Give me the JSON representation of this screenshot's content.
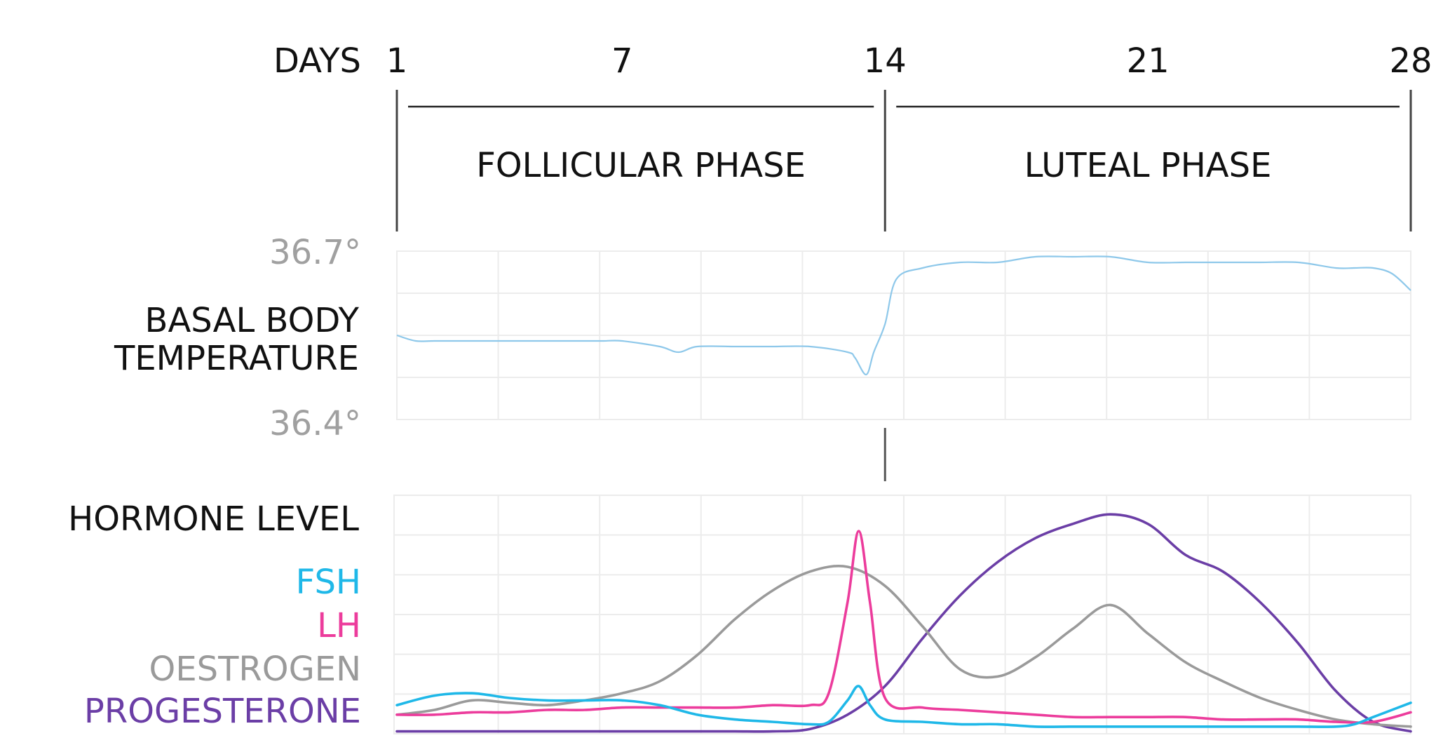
{
  "chart_data": {
    "type": "line",
    "days_label": "DAYS",
    "day_ticks": [
      "1",
      "7",
      "14",
      "21",
      "28"
    ],
    "day_tick_values": [
      1,
      7,
      14,
      21,
      28
    ],
    "x_range": [
      1,
      28
    ],
    "phases": [
      {
        "name": "FOLLICULAR PHASE",
        "start": 1,
        "end": 14
      },
      {
        "name": "LUTEAL PHASE",
        "start": 14,
        "end": 28
      }
    ],
    "temperature": {
      "label_line1": "BASAL BODY",
      "label_line2": "TEMPERATURE",
      "max_label": "36.7°",
      "min_label": "36.4°",
      "range": [
        36.4,
        36.7
      ],
      "color": "#8ec8ea",
      "points": [
        [
          1,
          36.55
        ],
        [
          1.5,
          36.54
        ],
        [
          2,
          36.54
        ],
        [
          3,
          36.54
        ],
        [
          4,
          36.54
        ],
        [
          4.5,
          36.54
        ],
        [
          5,
          36.54
        ],
        [
          6,
          36.54
        ],
        [
          6.5,
          36.54
        ],
        [
          7,
          36.54
        ],
        [
          8,
          36.53
        ],
        [
          8.5,
          36.52
        ],
        [
          9,
          36.53
        ],
        [
          10,
          36.53
        ],
        [
          10.5,
          36.53
        ],
        [
          11,
          36.53
        ],
        [
          12,
          36.53
        ],
        [
          13,
          36.52
        ],
        [
          13.2,
          36.51
        ],
        [
          13.5,
          36.48
        ],
        [
          13.7,
          36.52
        ],
        [
          14,
          36.57
        ],
        [
          14.3,
          36.65
        ],
        [
          15,
          36.67
        ],
        [
          16,
          36.68
        ],
        [
          17,
          36.68
        ],
        [
          18,
          36.69
        ],
        [
          19,
          36.69
        ],
        [
          20,
          36.69
        ],
        [
          21,
          36.68
        ],
        [
          22,
          36.68
        ],
        [
          23,
          36.68
        ],
        [
          24,
          36.68
        ],
        [
          25,
          36.68
        ],
        [
          26,
          36.67
        ],
        [
          26.5,
          36.67
        ],
        [
          27,
          36.67
        ],
        [
          27.5,
          36.66
        ],
        [
          28,
          36.63
        ]
      ]
    },
    "hormones": {
      "label": "HORMONE LEVEL",
      "range": [
        0,
        100
      ],
      "series": [
        {
          "name": "FSH",
          "color": "#1fb8e8",
          "points": [
            [
              1,
              12
            ],
            [
              2,
              16
            ],
            [
              3,
              17
            ],
            [
              4,
              15
            ],
            [
              5,
              14
            ],
            [
              6,
              14
            ],
            [
              7,
              14
            ],
            [
              8,
              12
            ],
            [
              9,
              8
            ],
            [
              10,
              6
            ],
            [
              11,
              5
            ],
            [
              12,
              4
            ],
            [
              12.5,
              5
            ],
            [
              13,
              14
            ],
            [
              13.3,
              20
            ],
            [
              13.6,
              12
            ],
            [
              14,
              6
            ],
            [
              15,
              5
            ],
            [
              16,
              4
            ],
            [
              17,
              4
            ],
            [
              18,
              3
            ],
            [
              19,
              3
            ],
            [
              20,
              3
            ],
            [
              21,
              3
            ],
            [
              22,
              3
            ],
            [
              23,
              3
            ],
            [
              24,
              3
            ],
            [
              25,
              3
            ],
            [
              26,
              3
            ],
            [
              26.5,
              4
            ],
            [
              27,
              7
            ],
            [
              27.5,
              10
            ],
            [
              28,
              13
            ]
          ]
        },
        {
          "name": "LH",
          "color": "#ec3c9c",
          "points": [
            [
              1,
              8
            ],
            [
              2,
              8
            ],
            [
              3,
              9
            ],
            [
              4,
              9
            ],
            [
              5,
              10
            ],
            [
              6,
              10
            ],
            [
              7,
              11
            ],
            [
              8,
              11
            ],
            [
              9,
              11
            ],
            [
              10,
              11
            ],
            [
              11,
              12
            ],
            [
              12,
              12
            ],
            [
              12.5,
              17
            ],
            [
              13,
              55
            ],
            [
              13.3,
              85
            ],
            [
              13.6,
              55
            ],
            [
              14,
              15
            ],
            [
              15,
              11
            ],
            [
              16,
              10
            ],
            [
              17,
              9
            ],
            [
              18,
              8
            ],
            [
              19,
              7
            ],
            [
              20,
              7
            ],
            [
              21,
              7
            ],
            [
              22,
              7
            ],
            [
              23,
              6
            ],
            [
              24,
              6
            ],
            [
              25,
              6
            ],
            [
              26,
              5
            ],
            [
              27,
              5
            ],
            [
              28,
              9
            ]
          ]
        },
        {
          "name": "OESTROGEN",
          "color": "#9a9a9a",
          "points": [
            [
              1,
              8
            ],
            [
              2,
              10
            ],
            [
              3,
              14
            ],
            [
              4,
              13
            ],
            [
              5,
              12
            ],
            [
              6,
              14
            ],
            [
              7,
              17
            ],
            [
              8,
              22
            ],
            [
              9,
              33
            ],
            [
              10,
              48
            ],
            [
              11,
              60
            ],
            [
              12,
              68
            ],
            [
              13,
              70
            ],
            [
              14,
              62
            ],
            [
              15,
              45
            ],
            [
              16,
              27
            ],
            [
              17,
              24
            ],
            [
              18,
              32
            ],
            [
              19,
              44
            ],
            [
              20,
              54
            ],
            [
              21,
              42
            ],
            [
              22,
              30
            ],
            [
              23,
              22
            ],
            [
              24,
              15
            ],
            [
              25,
              10
            ],
            [
              26,
              6
            ],
            [
              27,
              4
            ],
            [
              28,
              3
            ]
          ]
        },
        {
          "name": "PROGESTERONE",
          "color": "#6b3ea6",
          "points": [
            [
              1,
              1
            ],
            [
              2,
              1
            ],
            [
              3,
              1
            ],
            [
              4,
              1
            ],
            [
              5,
              1
            ],
            [
              6,
              1
            ],
            [
              7,
              1
            ],
            [
              8,
              1
            ],
            [
              9,
              1
            ],
            [
              10,
              1
            ],
            [
              11,
              1
            ],
            [
              12,
              2
            ],
            [
              13,
              8
            ],
            [
              14,
              20
            ],
            [
              15,
              40
            ],
            [
              16,
              58
            ],
            [
              17,
              72
            ],
            [
              18,
              82
            ],
            [
              19,
              88
            ],
            [
              20,
              92
            ],
            [
              21,
              88
            ],
            [
              22,
              75
            ],
            [
              23,
              68
            ],
            [
              24,
              55
            ],
            [
              25,
              38
            ],
            [
              26,
              18
            ],
            [
              27,
              5
            ],
            [
              28,
              1
            ]
          ]
        }
      ]
    }
  }
}
